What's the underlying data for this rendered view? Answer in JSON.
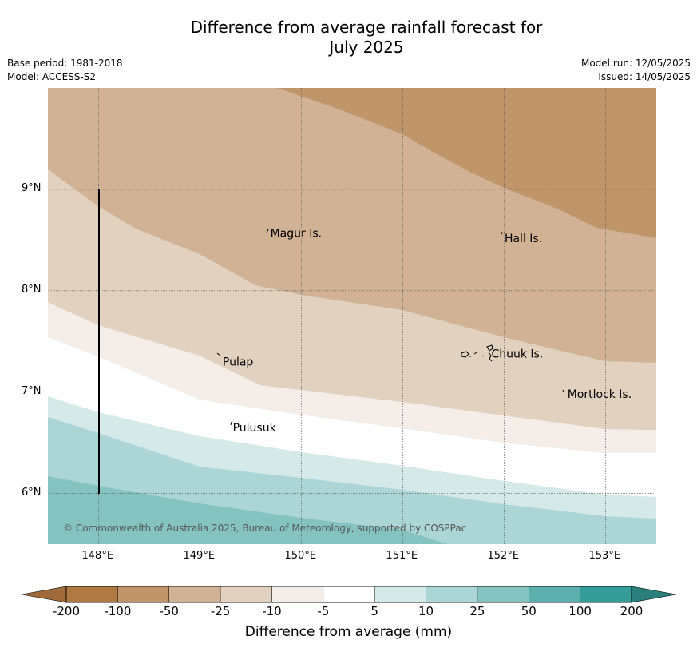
{
  "title": {
    "line1": "Difference from average rainfall forecast for",
    "line2": "July 2025"
  },
  "meta": {
    "base_period": "Base period: 1981-2018",
    "model": "Model: ACCESS-S2",
    "model_run": "Model run: 12/05/2025",
    "issued": "Issued: 14/05/2025"
  },
  "map": {
    "lon_labels": [
      "148°E",
      "149°E",
      "150°E",
      "151°E",
      "152°E",
      "153°E"
    ],
    "lon_values": [
      148,
      149,
      150,
      151,
      152,
      153
    ],
    "lat_labels": [
      "9°N",
      "8°N",
      "7°N",
      "6°N"
    ],
    "lat_values": [
      9,
      8,
      7,
      6
    ],
    "lon_range": [
      147.5,
      153.5
    ],
    "lat_range": [
      5.5,
      10.0
    ],
    "places": [
      {
        "name": "Magur Is.",
        "lon": 149.67,
        "lat": 8.57
      },
      {
        "name": "Hall Is.",
        "lon": 151.98,
        "lat": 8.52
      },
      {
        "name": "Pulap",
        "lon": 149.2,
        "lat": 7.3
      },
      {
        "name": "Chuuk Is.",
        "lon": 151.85,
        "lat": 7.38
      },
      {
        "name": "Mortlock Is.",
        "lon": 152.6,
        "lat": 6.98
      },
      {
        "name": "Pulusuk",
        "lon": 149.3,
        "lat": 6.65
      }
    ],
    "copyright": "© Commonwealth of Australia 2025, Bureau of Meteorology, supported by COSPPac"
  },
  "colors": {
    "lt_-200": "#a06a3a",
    "-200_-100": "#af7a44",
    "-100_-50": "#c0956a",
    "-50_-25": "#d1b294",
    "-25_-10": "#e3d1c0",
    "-10_-5": "#f4ede8",
    "-5_5": "#ffffff",
    "5_10": "#d5e9e8",
    "10_25": "#acd6d5",
    "25_50": "#85c3c1",
    "50_100": "#5dafad",
    "100_200": "#349d9a",
    "gt_200": "#2a7f7c"
  },
  "colorbar": {
    "labels": [
      "-200",
      "-100",
      "-50",
      "-25",
      "-10",
      "-5",
      "5",
      "10",
      "25",
      "50",
      "100",
      "200"
    ],
    "title": "Difference from average (mm)"
  }
}
